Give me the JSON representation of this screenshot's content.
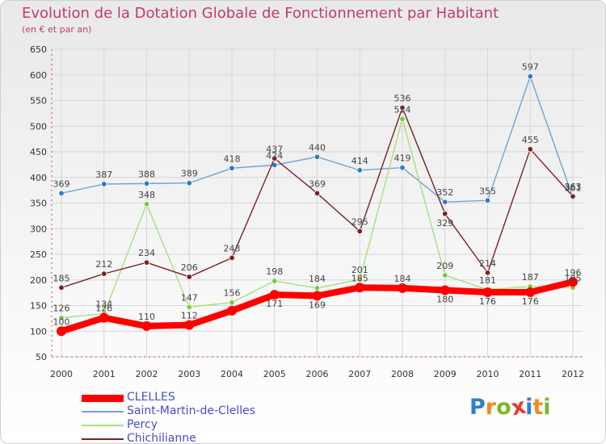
{
  "title": "Evolution de la Dotation Globale de Fonctionnement par Habitant",
  "subtitle": "(en € et par an)",
  "colors": {
    "title": "#c23a6e",
    "legend_text": "#4a4acf",
    "grid": "#d6d6d6",
    "axis": "#c23a6e"
  },
  "logo": {
    "letters": [
      "P",
      "r",
      "o",
      "x",
      "i",
      "t",
      "i"
    ],
    "colors": [
      "#2e7fd1",
      "#f28b1c",
      "#7ab82e",
      "#e03c31",
      "#2e7fd1",
      "#f28b1c",
      "#7ab82e"
    ]
  },
  "chart_data": {
    "type": "line",
    "title": "Evolution de la Dotation Globale de Fonctionnement par Habitant",
    "subtitle": "(en € et par an)",
    "x": [
      "2000",
      "2001",
      "2002",
      "2003",
      "2004",
      "2005",
      "2006",
      "2007",
      "2008",
      "2009",
      "2010",
      "2011",
      "2012"
    ],
    "ylim": [
      50,
      650
    ],
    "yticks": [
      "650",
      "600",
      "550",
      "500",
      "450",
      "400",
      "350",
      "300",
      "250",
      "200",
      "150",
      "100",
      "50"
    ],
    "grid": true,
    "legend_position": "bottom-left",
    "series": [
      {
        "name": "CLELLES",
        "color": "#ff0000",
        "emphasis": true,
        "values": [
          100,
          126,
          110,
          112,
          140,
          171,
          169,
          185,
          184,
          180,
          176,
          176,
          196
        ],
        "labels": [
          "100",
          "126",
          "110",
          "112",
          "140",
          "171",
          "169",
          "185",
          "184",
          "180",
          "176",
          "176",
          "196"
        ],
        "label_shown": [
          true,
          true,
          true,
          true,
          false,
          true,
          true,
          true,
          true,
          true,
          true,
          true,
          true
        ],
        "label_pos": [
          "above",
          "above",
          "above",
          "above",
          "above",
          "below",
          "below",
          "above",
          "above",
          "below",
          "below",
          "below",
          "above"
        ]
      },
      {
        "name": "Saint-Martin-de-Clelles",
        "color": "#6fa3d3",
        "marker": "#2f7ac9",
        "values": [
          369,
          387,
          388,
          389,
          418,
          424,
          440,
          414,
          419,
          352,
          355,
          597,
          361
        ],
        "labels": [
          "369",
          "387",
          "388",
          "389",
          "418",
          "424",
          "440",
          "414",
          "419",
          "352",
          "355",
          "597",
          "361"
        ],
        "label_shown": [
          true,
          true,
          true,
          true,
          true,
          true,
          true,
          true,
          true,
          true,
          true,
          true,
          true
        ],
        "label_pos": [
          "above",
          "above",
          "above",
          "above",
          "above",
          "above",
          "above",
          "above",
          "above",
          "above",
          "above",
          "above",
          "above"
        ]
      },
      {
        "name": "Percy",
        "color": "#a8e07a",
        "marker": "#7ac943",
        "values": [
          126,
          134,
          348,
          147,
          156,
          198,
          184,
          201,
          514,
          209,
          181,
          187,
          185
        ],
        "labels": [
          "126",
          "134",
          "348",
          "147",
          "156",
          "198",
          "184",
          "201",
          "514",
          "209",
          "181",
          "187",
          "185"
        ],
        "label_shown": [
          true,
          true,
          true,
          true,
          true,
          true,
          true,
          true,
          true,
          true,
          true,
          true,
          true
        ],
        "label_pos": [
          "above",
          "above",
          "above",
          "above",
          "above",
          "above",
          "above",
          "above",
          "above",
          "above",
          "above",
          "above",
          "above"
        ]
      },
      {
        "name": "Chichilianne",
        "color": "#7a2323",
        "marker": "#7a2323",
        "values": [
          185,
          212,
          234,
          206,
          243,
          437,
          369,
          295,
          536,
          329,
          214,
          455,
          363
        ],
        "labels": [
          "185",
          "212",
          "234",
          "206",
          "243",
          "437",
          "369",
          "295",
          "536",
          "329",
          "214",
          "455",
          "363"
        ],
        "label_shown": [
          true,
          true,
          true,
          true,
          true,
          true,
          true,
          true,
          true,
          true,
          true,
          true,
          true
        ],
        "label_pos": [
          "above",
          "above",
          "above",
          "above",
          "above",
          "above",
          "above",
          "above",
          "above",
          "below",
          "above",
          "above",
          "above"
        ]
      }
    ]
  }
}
